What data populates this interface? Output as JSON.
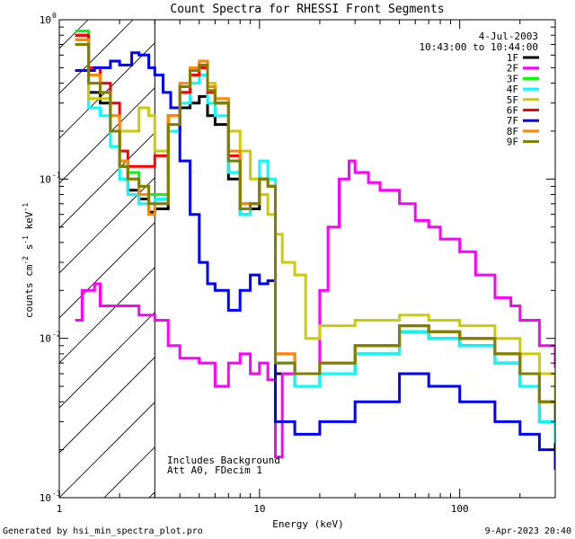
{
  "chart_data": {
    "type": "line",
    "title": "Count Spectra for RHESSI Front Segments",
    "xlabel": "Energy (keV)",
    "ylabel_parts": {
      "base": "counts cm",
      "exp1": "-2",
      "mid": " s",
      "exp2": "-1",
      "mid2": " keV",
      "exp3": "-1"
    },
    "xscale": "log",
    "yscale": "log",
    "xlim": [
      1,
      300
    ],
    "ylim": [
      0.001,
      1.0
    ],
    "x_ticks": [
      {
        "value": 1,
        "label": "1"
      },
      {
        "value": 10,
        "label": "10"
      },
      {
        "value": 100,
        "label": "100"
      }
    ],
    "y_ticks": [
      {
        "value": 1,
        "label": "10",
        "exp": "0"
      },
      {
        "value": 0.1,
        "label": "10",
        "exp": "-1"
      },
      {
        "value": 0.01,
        "label": "10",
        "exp": "-2"
      },
      {
        "value": 0.001,
        "label": "10",
        "exp": "-3"
      }
    ],
    "excluded_region": {
      "from": 1,
      "to": 3,
      "pattern": "hatched"
    },
    "header_date": "4-Jul-2003",
    "header_time": "10:43:00 to 10:44:00",
    "annotations": [
      "Includes Background",
      "Att A0, FDecim 1"
    ],
    "series": [
      {
        "name": "1F",
        "color": "#000000",
        "points": [
          [
            1.2,
            0.8
          ],
          [
            1.4,
            0.35
          ],
          [
            1.6,
            0.3
          ],
          [
            1.8,
            0.2
          ],
          [
            2.0,
            0.12
          ],
          [
            2.2,
            0.085
          ],
          [
            2.5,
            0.075
          ],
          [
            2.8,
            0.062
          ],
          [
            3.0,
            0.065
          ],
          [
            3.5,
            0.2
          ],
          [
            4.0,
            0.28
          ],
          [
            4.5,
            0.3
          ],
          [
            5.0,
            0.33
          ],
          [
            5.5,
            0.25
          ],
          [
            6.0,
            0.22
          ],
          [
            7.0,
            0.1
          ],
          [
            8.0,
            0.06
          ],
          [
            9.0,
            0.065
          ],
          [
            10.0,
            0.1
          ],
          [
            11.0,
            0.09
          ],
          [
            12.0,
            0.006
          ],
          [
            15.0,
            0.005
          ],
          [
            20.0,
            0.006
          ],
          [
            30.0,
            0.008
          ],
          [
            50.0,
            0.011
          ],
          [
            70.0,
            0.01
          ],
          [
            100.0,
            0.009
          ],
          [
            150.0,
            0.007
          ],
          [
            200.0,
            0.005
          ],
          [
            250.0,
            0.003
          ],
          [
            300.0,
            0.002
          ]
        ]
      },
      {
        "name": "2F",
        "color": "#ff00ff",
        "points": [
          [
            1.2,
            0.013
          ],
          [
            1.3,
            0.02
          ],
          [
            1.5,
            0.022
          ],
          [
            1.6,
            0.016
          ],
          [
            2.0,
            0.016
          ],
          [
            2.5,
            0.014
          ],
          [
            3.0,
            0.013
          ],
          [
            3.5,
            0.009
          ],
          [
            4.0,
            0.0075
          ],
          [
            5.0,
            0.007
          ],
          [
            6.0,
            0.005
          ],
          [
            7.0,
            0.007
          ],
          [
            8.0,
            0.008
          ],
          [
            9.0,
            0.006
          ],
          [
            10.0,
            0.007
          ],
          [
            11.0,
            0.0055
          ],
          [
            12.0,
            0.0018
          ],
          [
            13.0,
            0.006
          ],
          [
            15.0,
            0.006
          ],
          [
            20.0,
            0.02
          ],
          [
            22.0,
            0.05
          ],
          [
            25.0,
            0.1
          ],
          [
            28.0,
            0.13
          ],
          [
            30.0,
            0.11
          ],
          [
            35.0,
            0.095
          ],
          [
            40.0,
            0.085
          ],
          [
            50.0,
            0.07
          ],
          [
            60.0,
            0.055
          ],
          [
            70.0,
            0.05
          ],
          [
            80.0,
            0.042
          ],
          [
            100.0,
            0.035
          ],
          [
            120.0,
            0.025
          ],
          [
            150.0,
            0.018
          ],
          [
            180.0,
            0.016
          ],
          [
            200.0,
            0.013
          ],
          [
            250.0,
            0.009
          ],
          [
            300.0,
            0.0065
          ]
        ]
      },
      {
        "name": "3F",
        "color": "#00ff00",
        "points": [
          [
            1.2,
            0.85
          ],
          [
            1.4,
            0.45
          ],
          [
            1.6,
            0.35
          ],
          [
            1.8,
            0.2
          ],
          [
            2.0,
            0.13
          ],
          [
            2.2,
            0.11
          ],
          [
            2.5,
            0.09
          ],
          [
            2.8,
            0.08
          ],
          [
            3.0,
            0.08
          ],
          [
            3.5,
            0.25
          ],
          [
            4.0,
            0.35
          ],
          [
            4.5,
            0.45
          ],
          [
            5.0,
            0.5
          ],
          [
            5.5,
            0.35
          ],
          [
            6.0,
            0.3
          ],
          [
            7.0,
            0.13
          ],
          [
            8.0,
            0.07
          ],
          [
            9.0,
            0.07
          ],
          [
            10.0,
            0.1
          ],
          [
            11.0,
            0.09
          ],
          [
            12.0,
            0.007
          ],
          [
            15.0,
            0.006
          ],
          [
            20.0,
            0.007
          ],
          [
            30.0,
            0.009
          ],
          [
            50.0,
            0.012
          ],
          [
            70.0,
            0.011
          ],
          [
            100.0,
            0.01
          ],
          [
            150.0,
            0.008
          ],
          [
            200.0,
            0.006
          ],
          [
            250.0,
            0.004
          ],
          [
            300.0,
            0.003
          ]
        ]
      },
      {
        "name": "4F",
        "color": "#00ffff",
        "points": [
          [
            1.2,
            0.75
          ],
          [
            1.4,
            0.28
          ],
          [
            1.6,
            0.25
          ],
          [
            1.8,
            0.16
          ],
          [
            2.0,
            0.1
          ],
          [
            2.2,
            0.08
          ],
          [
            2.5,
            0.07
          ],
          [
            2.8,
            0.07
          ],
          [
            3.0,
            0.075
          ],
          [
            3.5,
            0.2
          ],
          [
            4.0,
            0.3
          ],
          [
            4.5,
            0.4
          ],
          [
            5.0,
            0.45
          ],
          [
            5.5,
            0.3
          ],
          [
            6.0,
            0.25
          ],
          [
            7.0,
            0.11
          ],
          [
            8.0,
            0.06
          ],
          [
            9.0,
            0.07
          ],
          [
            10.0,
            0.13
          ],
          [
            11.0,
            0.1
          ],
          [
            12.0,
            0.007
          ],
          [
            15.0,
            0.005
          ],
          [
            20.0,
            0.006
          ],
          [
            30.0,
            0.008
          ],
          [
            50.0,
            0.011
          ],
          [
            70.0,
            0.01
          ],
          [
            100.0,
            0.009
          ],
          [
            150.0,
            0.007
          ],
          [
            200.0,
            0.005
          ],
          [
            250.0,
            0.003
          ],
          [
            300.0,
            0.0022
          ]
        ]
      },
      {
        "name": "5F",
        "color": "#cccc00",
        "points": [
          [
            1.2,
            0.75
          ],
          [
            1.4,
            0.32
          ],
          [
            1.6,
            0.32
          ],
          [
            1.8,
            0.25
          ],
          [
            2.0,
            0.2
          ],
          [
            2.2,
            0.2
          ],
          [
            2.5,
            0.28
          ],
          [
            2.8,
            0.25
          ],
          [
            3.0,
            0.15
          ],
          [
            3.5,
            0.25
          ],
          [
            4.0,
            0.35
          ],
          [
            4.5,
            0.45
          ],
          [
            5.0,
            0.5
          ],
          [
            5.5,
            0.4
          ],
          [
            6.0,
            0.3
          ],
          [
            7.0,
            0.2
          ],
          [
            8.0,
            0.15
          ],
          [
            9.0,
            0.1
          ],
          [
            10.0,
            0.08
          ],
          [
            11.0,
            0.06
          ],
          [
            12.0,
            0.045
          ],
          [
            13.0,
            0.03
          ],
          [
            15.0,
            0.025
          ],
          [
            17.0,
            0.01
          ],
          [
            20.0,
            0.012
          ],
          [
            30.0,
            0.013
          ],
          [
            50.0,
            0.014
          ],
          [
            70.0,
            0.013
          ],
          [
            100.0,
            0.012
          ],
          [
            150.0,
            0.01
          ],
          [
            200.0,
            0.008
          ],
          [
            250.0,
            0.006
          ],
          [
            300.0,
            0.004
          ]
        ]
      },
      {
        "name": "6F",
        "color": "#ff0000",
        "points": [
          [
            1.2,
            0.8
          ],
          [
            1.4,
            0.5
          ],
          [
            1.6,
            0.4
          ],
          [
            1.8,
            0.3
          ],
          [
            2.0,
            0.15
          ],
          [
            2.2,
            0.12
          ],
          [
            2.5,
            0.12
          ],
          [
            2.8,
            0.12
          ],
          [
            3.0,
            0.14
          ],
          [
            3.5,
            0.25
          ],
          [
            4.0,
            0.35
          ],
          [
            4.5,
            0.45
          ],
          [
            5.0,
            0.5
          ],
          [
            5.5,
            0.35
          ],
          [
            6.0,
            0.3
          ],
          [
            7.0,
            0.14
          ],
          [
            8.0,
            0.07
          ],
          [
            9.0,
            0.07
          ],
          [
            10.0,
            0.1
          ],
          [
            11.0,
            0.09
          ],
          [
            12.0,
            0.008
          ],
          [
            15.0,
            0.006
          ],
          [
            20.0,
            0.007
          ],
          [
            30.0,
            0.009
          ],
          [
            50.0,
            0.012
          ],
          [
            70.0,
            0.011
          ],
          [
            100.0,
            0.01
          ],
          [
            150.0,
            0.008
          ],
          [
            200.0,
            0.006
          ],
          [
            250.0,
            0.004
          ],
          [
            300.0,
            0.003
          ]
        ]
      },
      {
        "name": "7F",
        "color": "#0000ff",
        "points": [
          [
            1.2,
            0.48
          ],
          [
            1.5,
            0.5
          ],
          [
            1.8,
            0.55
          ],
          [
            2.0,
            0.52
          ],
          [
            2.3,
            0.62
          ],
          [
            2.5,
            0.6
          ],
          [
            2.8,
            0.5
          ],
          [
            3.0,
            0.45
          ],
          [
            3.3,
            0.35
          ],
          [
            3.6,
            0.28
          ],
          [
            4.0,
            0.13
          ],
          [
            4.5,
            0.06
          ],
          [
            5.0,
            0.03
          ],
          [
            5.5,
            0.022
          ],
          [
            6.0,
            0.02
          ],
          [
            7.0,
            0.015
          ],
          [
            8.0,
            0.02
          ],
          [
            9.0,
            0.025
          ],
          [
            10.0,
            0.022
          ],
          [
            11.0,
            0.023
          ],
          [
            12.0,
            0.003
          ],
          [
            15.0,
            0.0025
          ],
          [
            20.0,
            0.003
          ],
          [
            30.0,
            0.004
          ],
          [
            50.0,
            0.006
          ],
          [
            70.0,
            0.005
          ],
          [
            100.0,
            0.004
          ],
          [
            150.0,
            0.003
          ],
          [
            200.0,
            0.0025
          ],
          [
            250.0,
            0.002
          ],
          [
            300.0,
            0.0015
          ]
        ]
      },
      {
        "name": "8F",
        "color": "#ff8800",
        "points": [
          [
            1.2,
            0.75
          ],
          [
            1.4,
            0.45
          ],
          [
            1.6,
            0.35
          ],
          [
            1.8,
            0.25
          ],
          [
            2.0,
            0.13
          ],
          [
            2.2,
            0.1
          ],
          [
            2.5,
            0.08
          ],
          [
            2.8,
            0.06
          ],
          [
            3.0,
            0.07
          ],
          [
            3.5,
            0.25
          ],
          [
            4.0,
            0.4
          ],
          [
            4.5,
            0.5
          ],
          [
            5.0,
            0.55
          ],
          [
            5.5,
            0.38
          ],
          [
            6.0,
            0.32
          ],
          [
            7.0,
            0.15
          ],
          [
            8.0,
            0.07
          ],
          [
            9.0,
            0.07
          ],
          [
            10.0,
            0.1
          ],
          [
            11.0,
            0.09
          ],
          [
            12.0,
            0.008
          ],
          [
            15.0,
            0.006
          ],
          [
            20.0,
            0.007
          ],
          [
            30.0,
            0.009
          ],
          [
            50.0,
            0.012
          ],
          [
            70.0,
            0.011
          ],
          [
            100.0,
            0.01
          ],
          [
            150.0,
            0.008
          ],
          [
            200.0,
            0.006
          ],
          [
            250.0,
            0.004
          ],
          [
            300.0,
            0.003
          ]
        ]
      },
      {
        "name": "9F",
        "color": "#808000",
        "points": [
          [
            1.2,
            0.7
          ],
          [
            1.4,
            0.4
          ],
          [
            1.6,
            0.35
          ],
          [
            1.8,
            0.2
          ],
          [
            2.0,
            0.12
          ],
          [
            2.2,
            0.1
          ],
          [
            2.5,
            0.09
          ],
          [
            2.8,
            0.07
          ],
          [
            3.0,
            0.07
          ],
          [
            3.5,
            0.22
          ],
          [
            4.0,
            0.38
          ],
          [
            4.5,
            0.48
          ],
          [
            5.0,
            0.52
          ],
          [
            5.5,
            0.36
          ],
          [
            6.0,
            0.3
          ],
          [
            7.0,
            0.13
          ],
          [
            8.0,
            0.065
          ],
          [
            9.0,
            0.07
          ],
          [
            10.0,
            0.1
          ],
          [
            11.0,
            0.09
          ],
          [
            12.0,
            0.007
          ],
          [
            15.0,
            0.006
          ],
          [
            20.0,
            0.007
          ],
          [
            30.0,
            0.009
          ],
          [
            50.0,
            0.012
          ],
          [
            70.0,
            0.011
          ],
          [
            100.0,
            0.01
          ],
          [
            150.0,
            0.008
          ],
          [
            200.0,
            0.006
          ],
          [
            250.0,
            0.004
          ],
          [
            300.0,
            0.003
          ]
        ]
      }
    ]
  },
  "footer": {
    "generated_by": "Generated by hsi_min_spectra_plot.pro",
    "timestamp": "9-Apr-2023 20:40"
  }
}
